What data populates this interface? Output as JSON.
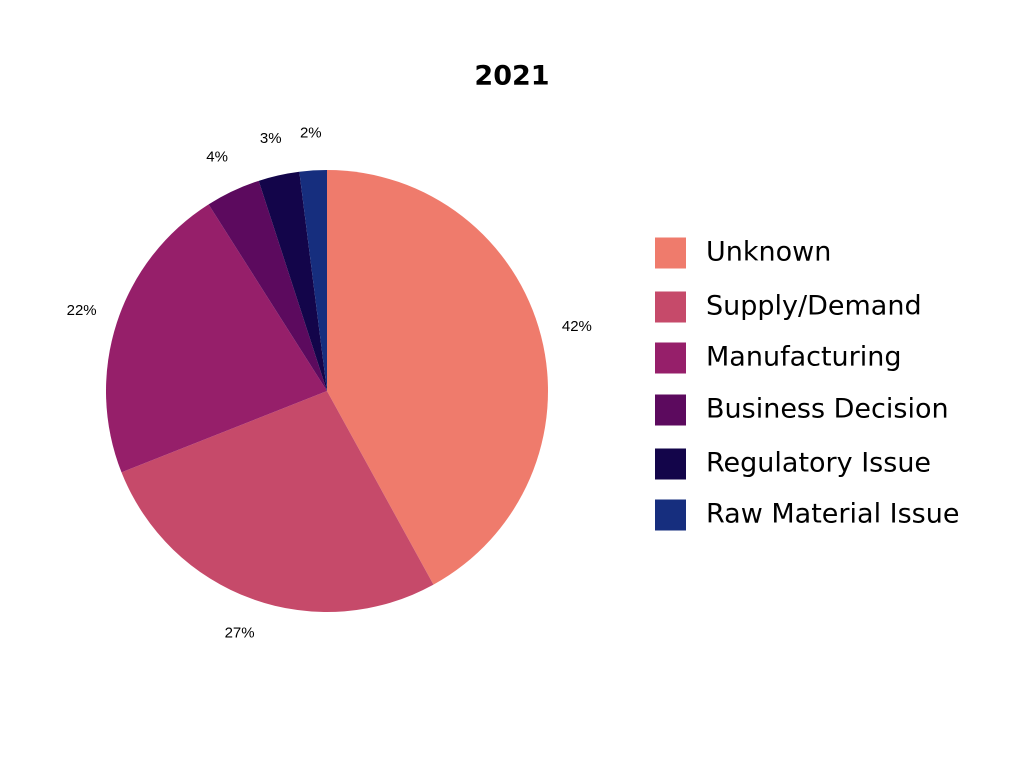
{
  "chart_data": {
    "type": "pie",
    "title": "2021",
    "categories": [
      "Unknown",
      "Supply/Demand",
      "Manufacturing",
      "Business Decision",
      "Regulatory Issue",
      "Raw Material Issue"
    ],
    "values": [
      42,
      27,
      22,
      4,
      3,
      2
    ],
    "value_labels": [
      "42%",
      "27%",
      "22%",
      "4%",
      "3%",
      "2%"
    ],
    "colors": [
      "#ef7b6c",
      "#c64a6a",
      "#961f6a",
      "#5c0a5e",
      "#13054a",
      "#162e7e"
    ],
    "legend": "right"
  }
}
